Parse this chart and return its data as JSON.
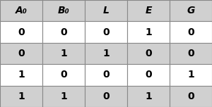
{
  "headers": [
    "A₀",
    "B₀",
    "L",
    "E",
    "G"
  ],
  "rows": [
    [
      "0",
      "0",
      "0",
      "1",
      "0"
    ],
    [
      "0",
      "1",
      "1",
      "0",
      "0"
    ],
    [
      "1",
      "0",
      "0",
      "0",
      "1"
    ],
    [
      "1",
      "1",
      "0",
      "1",
      "0"
    ]
  ],
  "header_bg": "#d0d0d0",
  "row_bg_even": "#ffffff",
  "row_bg_odd": "#d0d0d0",
  "text_color": "#000000",
  "border_color": "#888888",
  "header_fontsize": 10,
  "cell_fontsize": 10,
  "fig_bg": "#ffffff"
}
